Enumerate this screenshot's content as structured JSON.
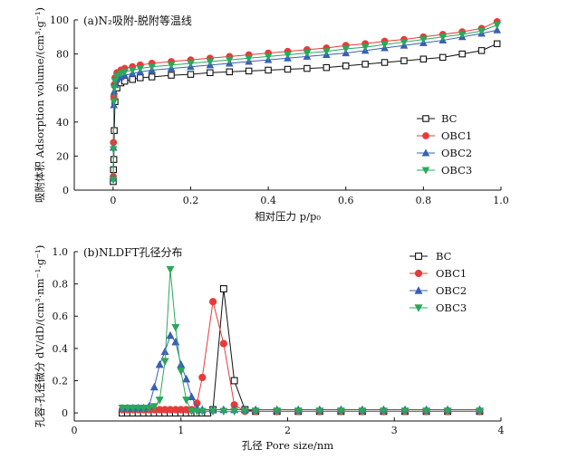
{
  "chart_data": [
    {
      "type": "scatter",
      "title": "(a)N₂吸附-脱附等温线",
      "xlabel": "相对压力 p/p₀",
      "ylabel": "吸附体积 Adsorption volume/(cm³·g⁻¹)",
      "xlim": [
        -0.1,
        1.0
      ],
      "ylim": [
        0,
        100
      ],
      "xticks": [
        "0",
        "0.2",
        "0.4",
        "0.6",
        "0.8",
        "1.0"
      ],
      "yticks": [
        "0",
        "20",
        "40",
        "60",
        "80",
        "100"
      ],
      "legend": "right",
      "x": [
        0.0005,
        0.001,
        0.002,
        0.003,
        0.005,
        0.01,
        0.02,
        0.03,
        0.05,
        0.07,
        0.1,
        0.15,
        0.2,
        0.25,
        0.3,
        0.35,
        0.4,
        0.45,
        0.5,
        0.55,
        0.6,
        0.65,
        0.7,
        0.75,
        0.8,
        0.85,
        0.9,
        0.95,
        0.99
      ],
      "series": [
        {
          "name": "BC",
          "color": "#111111",
          "marker": "square",
          "values": [
            5,
            12,
            18,
            35,
            52,
            60,
            63,
            64,
            65,
            66,
            66.5,
            67.5,
            68,
            69,
            69.5,
            70,
            70.5,
            71,
            71.5,
            72,
            73,
            74,
            75,
            76,
            77,
            78,
            80,
            82,
            86
          ]
        },
        {
          "name": "OBC1",
          "color": "#e63b3b",
          "marker": "circle",
          "values": [
            8,
            28,
            55,
            62,
            66,
            69,
            70.5,
            71.5,
            72.5,
            73.5,
            74.5,
            75.5,
            76.5,
            77.5,
            78.5,
            79.5,
            80.5,
            81.5,
            82.5,
            83.5,
            85,
            86,
            87.5,
            88.5,
            90,
            91.5,
            93,
            95,
            99
          ]
        },
        {
          "name": "OBC2",
          "color": "#3a5fb5",
          "marker": "triangle-up",
          "values": [
            7,
            25,
            50,
            58,
            62,
            65,
            66.5,
            67.5,
            68.5,
            69.5,
            70.5,
            71.5,
            72.5,
            73.5,
            74.5,
            75.5,
            76.5,
            77.5,
            78.5,
            79.5,
            80.5,
            82,
            83.5,
            85,
            86.5,
            88,
            90,
            92,
            94
          ]
        },
        {
          "name": "OBC3",
          "color": "#2aa85a",
          "marker": "triangle-down",
          "values": [
            6,
            24,
            52,
            60,
            64,
            67,
            68.5,
            69.5,
            70.5,
            71.5,
            72.5,
            73.5,
            74.5,
            75.5,
            76.5,
            77.5,
            78.5,
            79.5,
            80.5,
            81.5,
            83,
            84,
            85.5,
            87,
            88.5,
            90,
            91.5,
            93.5,
            97
          ]
        }
      ]
    },
    {
      "type": "line",
      "title": "(b)NLDFT孔径分布",
      "xlabel": "孔径 Pore size/nm",
      "ylabel": "孔容-孔径微分 dV/dD/(cm³·nm⁻¹·g⁻¹)",
      "xlim": [
        0,
        4
      ],
      "ylim": [
        -0.05,
        1.0
      ],
      "xticks": [
        "0",
        "1",
        "2",
        "3",
        "4"
      ],
      "yticks": [
        "0",
        "0.2",
        "0.4",
        "0.6",
        "0.8",
        "1.0"
      ],
      "legend": "top-right",
      "series": [
        {
          "name": "BC",
          "color": "#111111",
          "marker": "square",
          "x": [
            0.45,
            0.5,
            0.55,
            0.6,
            0.65,
            0.7,
            0.75,
            0.8,
            0.85,
            0.9,
            0.95,
            1.0,
            1.05,
            1.1,
            1.15,
            1.2,
            1.25,
            1.3,
            1.4,
            1.5,
            1.6,
            1.7,
            1.9,
            2.1,
            2.3,
            2.5,
            2.7,
            2.9,
            3.1,
            3.3,
            3.5,
            3.8
          ],
          "values": [
            0,
            0,
            0,
            0,
            0,
            0,
            0,
            0,
            0,
            0,
            0,
            0,
            0,
            0,
            0,
            0,
            0,
            0.02,
            0.77,
            0.2,
            0.02,
            0.01,
            0.01,
            0.01,
            0.01,
            0.01,
            0.01,
            0.01,
            0.01,
            0.01,
            0.01,
            0.01
          ]
        },
        {
          "name": "OBC1",
          "color": "#e63b3b",
          "marker": "circle",
          "x": [
            0.45,
            0.5,
            0.55,
            0.6,
            0.65,
            0.7,
            0.75,
            0.8,
            0.85,
            0.9,
            0.95,
            1.0,
            1.05,
            1.1,
            1.15,
            1.2,
            1.3,
            1.4,
            1.5,
            1.6,
            1.7,
            1.9,
            2.1,
            2.3,
            2.5,
            2.7,
            2.9,
            3.1,
            3.3,
            3.5,
            3.8
          ],
          "values": [
            0.02,
            0.02,
            0.02,
            0.02,
            0.02,
            0.02,
            0.02,
            0.02,
            0.02,
            0.02,
            0.02,
            0.02,
            0.02,
            0.02,
            0.06,
            0.22,
            0.69,
            0.43,
            0.05,
            0.01,
            0.01,
            0.01,
            0.01,
            0.01,
            0.01,
            0.01,
            0.01,
            0.01,
            0.01,
            0.01,
            0.01
          ]
        },
        {
          "name": "OBC2",
          "color": "#3a5fb5",
          "marker": "triangle-up",
          "x": [
            0.45,
            0.5,
            0.55,
            0.6,
            0.65,
            0.7,
            0.75,
            0.8,
            0.85,
            0.9,
            0.95,
            1.0,
            1.05,
            1.1,
            1.15,
            1.2,
            1.3,
            1.4,
            1.5,
            1.6,
            1.7,
            1.9,
            2.1,
            2.3,
            2.5,
            2.7,
            2.9,
            3.1,
            3.3,
            3.5,
            3.8
          ],
          "values": [
            0.03,
            0.03,
            0.03,
            0.03,
            0.03,
            0.04,
            0.16,
            0.3,
            0.38,
            0.48,
            0.44,
            0.3,
            0.21,
            0.1,
            0.03,
            0.02,
            0.02,
            0.02,
            0.02,
            0.02,
            0.02,
            0.02,
            0.02,
            0.02,
            0.02,
            0.02,
            0.02,
            0.02,
            0.02,
            0.02,
            0.02
          ]
        },
        {
          "name": "OBC3",
          "color": "#2aa85a",
          "marker": "triangle-down",
          "x": [
            0.45,
            0.5,
            0.55,
            0.6,
            0.65,
            0.7,
            0.75,
            0.8,
            0.85,
            0.9,
            0.95,
            1.0,
            1.05,
            1.1,
            1.15,
            1.2,
            1.3,
            1.4,
            1.5,
            1.6,
            1.7,
            1.9,
            2.1,
            2.3,
            2.5,
            2.7,
            2.9,
            3.1,
            3.3,
            3.5,
            3.8
          ],
          "values": [
            0.03,
            0.03,
            0.03,
            0.03,
            0.03,
            0.03,
            0.04,
            0.08,
            0.32,
            0.89,
            0.53,
            0.26,
            0.08,
            0.01,
            0.01,
            0.01,
            0.01,
            0.01,
            0.01,
            0.01,
            0.01,
            0.01,
            0.01,
            0.01,
            0.01,
            0.01,
            0.01,
            0.01,
            0.01,
            0.01,
            0.01
          ]
        }
      ]
    }
  ]
}
